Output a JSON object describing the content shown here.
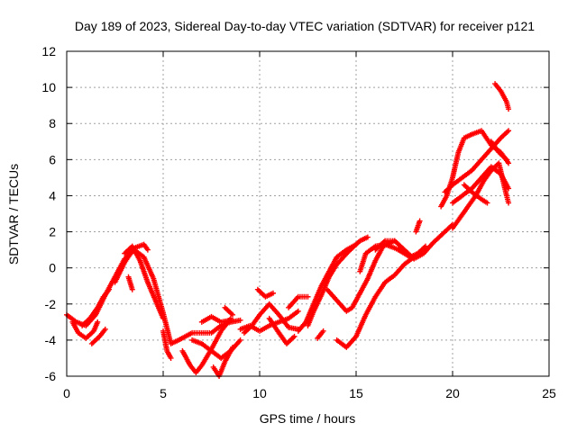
{
  "chart_data": {
    "type": "scatter",
    "title": "Day 189 of 2023, Sidereal Day-to-day VTEC variation (SDTVAR) for receiver p121",
    "xlabel": "GPS time / hours",
    "ylabel": "SDTVAR / TECUs",
    "xlim": [
      0,
      25
    ],
    "ylim": [
      -6,
      12
    ],
    "x_ticks": [
      "0",
      "5",
      "10",
      "15",
      "20",
      "25"
    ],
    "y_ticks": [
      "-6",
      "-4",
      "-2",
      "0",
      "2",
      "4",
      "6",
      "8",
      "10",
      "12"
    ],
    "grid": true,
    "marker": "plus",
    "color": "#ff0000",
    "series": [
      {
        "tracks": [
          [
            [
              0.0,
              -2.6
            ],
            [
              0.5,
              -3.0
            ],
            [
              1.0,
              -3.2
            ],
            [
              1.5,
              -2.6
            ],
            [
              2.0,
              -1.5
            ],
            [
              2.5,
              -0.5
            ],
            [
              3.0,
              0.5
            ],
            [
              3.5,
              1.0
            ],
            [
              4.0,
              0.6
            ],
            [
              4.5,
              -0.6
            ],
            [
              5.0,
              -2.5
            ],
            [
              5.4,
              -4.2
            ],
            [
              5.8,
              -4.0
            ],
            [
              6.5,
              -3.6
            ],
            [
              7.0,
              -3.6
            ],
            [
              7.5,
              -3.6
            ],
            [
              8.0,
              -3.2
            ],
            [
              8.5,
              -3.0
            ],
            [
              9.0,
              -2.9
            ]
          ],
          [
            [
              0.3,
              -3.0
            ],
            [
              0.6,
              -3.6
            ],
            [
              1.0,
              -3.9
            ],
            [
              1.4,
              -3.5
            ],
            [
              1.6,
              -3.0
            ]
          ],
          [
            [
              1.3,
              -4.2
            ],
            [
              1.7,
              -3.8
            ],
            [
              2.0,
              -3.4
            ]
          ],
          [
            [
              0.8,
              -3.2
            ],
            [
              1.2,
              -2.8
            ],
            [
              1.6,
              -2.2
            ],
            [
              1.9,
              -1.6
            ],
            [
              2.2,
              -1.2
            ]
          ],
          [
            [
              2.5,
              -0.8
            ],
            [
              3.0,
              0.3
            ],
            [
              3.5,
              1.1
            ],
            [
              4.0,
              1.3
            ],
            [
              4.2,
              1.0
            ]
          ],
          [
            [
              3.0,
              0.8
            ],
            [
              3.4,
              1.2
            ],
            [
              3.8,
              0.4
            ],
            [
              4.2,
              -0.8
            ],
            [
              4.6,
              -1.8
            ],
            [
              5.0,
              -2.8
            ]
          ],
          [
            [
              3.2,
              -0.5
            ],
            [
              3.4,
              -1.2
            ]
          ],
          [
            [
              5.0,
              -3.5
            ],
            [
              5.2,
              -4.6
            ],
            [
              5.4,
              -5.0
            ]
          ],
          [
            [
              6.0,
              -4.6
            ],
            [
              6.4,
              -5.4
            ],
            [
              6.7,
              -5.8
            ],
            [
              7.0,
              -5.4
            ],
            [
              7.5,
              -4.5
            ],
            [
              8.0,
              -3.5
            ],
            [
              8.5,
              -2.8
            ]
          ],
          [
            [
              6.5,
              -4.0
            ],
            [
              7.0,
              -4.2
            ],
            [
              7.5,
              -4.6
            ],
            [
              8.0,
              -5.0
            ],
            [
              8.5,
              -4.6
            ],
            [
              9.0,
              -4.0
            ]
          ],
          [
            [
              7.0,
              -3.0
            ],
            [
              7.5,
              -2.7
            ],
            [
              8.0,
              -3.0
            ],
            [
              8.5,
              -2.9
            ]
          ],
          [
            [
              7.6,
              -5.5
            ],
            [
              7.9,
              -6.0
            ],
            [
              8.2,
              -5.2
            ],
            [
              8.6,
              -4.4
            ]
          ],
          [
            [
              8.2,
              -2.2
            ],
            [
              8.6,
              -2.6
            ]
          ],
          [
            [
              9.0,
              -3.4
            ],
            [
              9.5,
              -3.2
            ],
            [
              10.0,
              -3.5
            ],
            [
              10.5,
              -3.2
            ],
            [
              11.0,
              -3.0
            ],
            [
              11.5,
              -2.8
            ],
            [
              12.0,
              -2.4
            ]
          ],
          [
            [
              9.2,
              -3.6
            ],
            [
              9.6,
              -3.2
            ],
            [
              10.0,
              -2.6
            ],
            [
              10.5,
              -2.0
            ],
            [
              11.0,
              -2.6
            ],
            [
              11.5,
              -3.3
            ],
            [
              12.0,
              -3.4
            ]
          ],
          [
            [
              9.9,
              -1.2
            ],
            [
              10.3,
              -1.6
            ],
            [
              10.7,
              -1.4
            ]
          ],
          [
            [
              10.5,
              -2.8
            ],
            [
              11.0,
              -3.6
            ],
            [
              11.4,
              -4.2
            ],
            [
              11.8,
              -3.8
            ]
          ],
          [
            [
              11.5,
              -2.2
            ],
            [
              12.0,
              -1.6
            ],
            [
              12.5,
              -1.6
            ]
          ],
          [
            [
              12.0,
              -3.5
            ],
            [
              12.4,
              -3.0
            ],
            [
              12.8,
              -2.0
            ],
            [
              13.2,
              -1.0
            ],
            [
              13.6,
              -0.2
            ],
            [
              14.0,
              0.6
            ],
            [
              14.5,
              1.0
            ],
            [
              15.0,
              1.3
            ]
          ],
          [
            [
              12.5,
              -3.2
            ],
            [
              12.8,
              -2.4
            ],
            [
              13.2,
              -1.5
            ],
            [
              13.6,
              -0.5
            ],
            [
              14.0,
              0.2
            ],
            [
              14.6,
              0.9
            ],
            [
              15.2,
              1.5
            ],
            [
              15.6,
              1.7
            ]
          ],
          [
            [
              13.0,
              -3.9
            ],
            [
              13.3,
              -3.5
            ]
          ],
          [
            [
              13.5,
              -1.2
            ],
            [
              14.0,
              -1.8
            ],
            [
              14.5,
              -2.4
            ],
            [
              14.8,
              -2.2
            ],
            [
              15.2,
              -1.4
            ],
            [
              15.6,
              -0.6
            ],
            [
              16.0,
              0.4
            ],
            [
              16.4,
              1.2
            ],
            [
              17.0,
              1.5
            ]
          ],
          [
            [
              14.0,
              -4.0
            ],
            [
              14.5,
              -4.4
            ],
            [
              15.0,
              -3.8
            ],
            [
              15.5,
              -2.6
            ],
            [
              16.0,
              -1.6
            ],
            [
              16.5,
              -0.8
            ],
            [
              17.0,
              -0.4
            ],
            [
              17.5,
              0.2
            ],
            [
              18.0,
              0.6
            ]
          ],
          [
            [
              15.2,
              -0.2
            ],
            [
              15.5,
              0.8
            ],
            [
              16.0,
              1.2
            ],
            [
              16.5,
              1.3
            ],
            [
              17.0,
              1.1
            ],
            [
              17.6,
              0.8
            ]
          ],
          [
            [
              16.0,
              1.0
            ],
            [
              16.5,
              1.5
            ],
            [
              17.0,
              1.5
            ],
            [
              17.5,
              1.0
            ],
            [
              18.0,
              0.5
            ],
            [
              18.5,
              0.8
            ],
            [
              19.0,
              1.4
            ],
            [
              19.5,
              1.9
            ],
            [
              20.0,
              2.4
            ]
          ],
          [
            [
              17.2,
              1.0
            ],
            [
              17.8,
              0.6
            ],
            [
              18.2,
              0.8
            ],
            [
              18.6,
              1.2
            ]
          ],
          [
            [
              18.1,
              2.0
            ],
            [
              18.3,
              2.6
            ]
          ],
          [
            [
              19.4,
              3.4
            ],
            [
              19.7,
              4.0
            ],
            [
              20.0,
              5.0
            ],
            [
              20.3,
              6.4
            ],
            [
              20.6,
              7.2
            ],
            [
              21.0,
              7.4
            ],
            [
              21.5,
              7.6
            ],
            [
              22.0,
              6.8
            ],
            [
              22.5,
              6.4
            ],
            [
              22.9,
              5.8
            ]
          ],
          [
            [
              19.6,
              4.2
            ],
            [
              20.0,
              4.6
            ],
            [
              20.5,
              5.0
            ],
            [
              21.0,
              5.4
            ],
            [
              21.5,
              6.0
            ],
            [
              22.0,
              6.6
            ],
            [
              22.5,
              7.2
            ],
            [
              22.9,
              7.6
            ]
          ],
          [
            [
              20.0,
              3.6
            ],
            [
              20.5,
              4.0
            ],
            [
              21.0,
              4.4
            ],
            [
              21.5,
              5.0
            ],
            [
              22.0,
              5.6
            ],
            [
              22.5,
              5.2
            ],
            [
              22.9,
              4.4
            ]
          ],
          [
            [
              20.0,
              2.2
            ],
            [
              20.4,
              2.8
            ],
            [
              20.8,
              3.4
            ],
            [
              21.2,
              4.0
            ],
            [
              21.6,
              4.8
            ],
            [
              22.0,
              5.4
            ],
            [
              22.4,
              5.8
            ],
            [
              22.8,
              4.0
            ],
            [
              22.9,
              3.6
            ]
          ],
          [
            [
              20.6,
              4.6
            ],
            [
              21.0,
              4.2
            ],
            [
              21.5,
              3.8
            ],
            [
              21.8,
              3.6
            ]
          ],
          [
            [
              22.2,
              10.2
            ],
            [
              22.5,
              9.8
            ],
            [
              22.8,
              9.2
            ],
            [
              22.9,
              8.8
            ]
          ],
          [
            [
              22.0,
              7.0
            ],
            [
              22.4,
              6.4
            ],
            [
              22.8,
              6.0
            ]
          ]
        ]
      }
    ]
  }
}
